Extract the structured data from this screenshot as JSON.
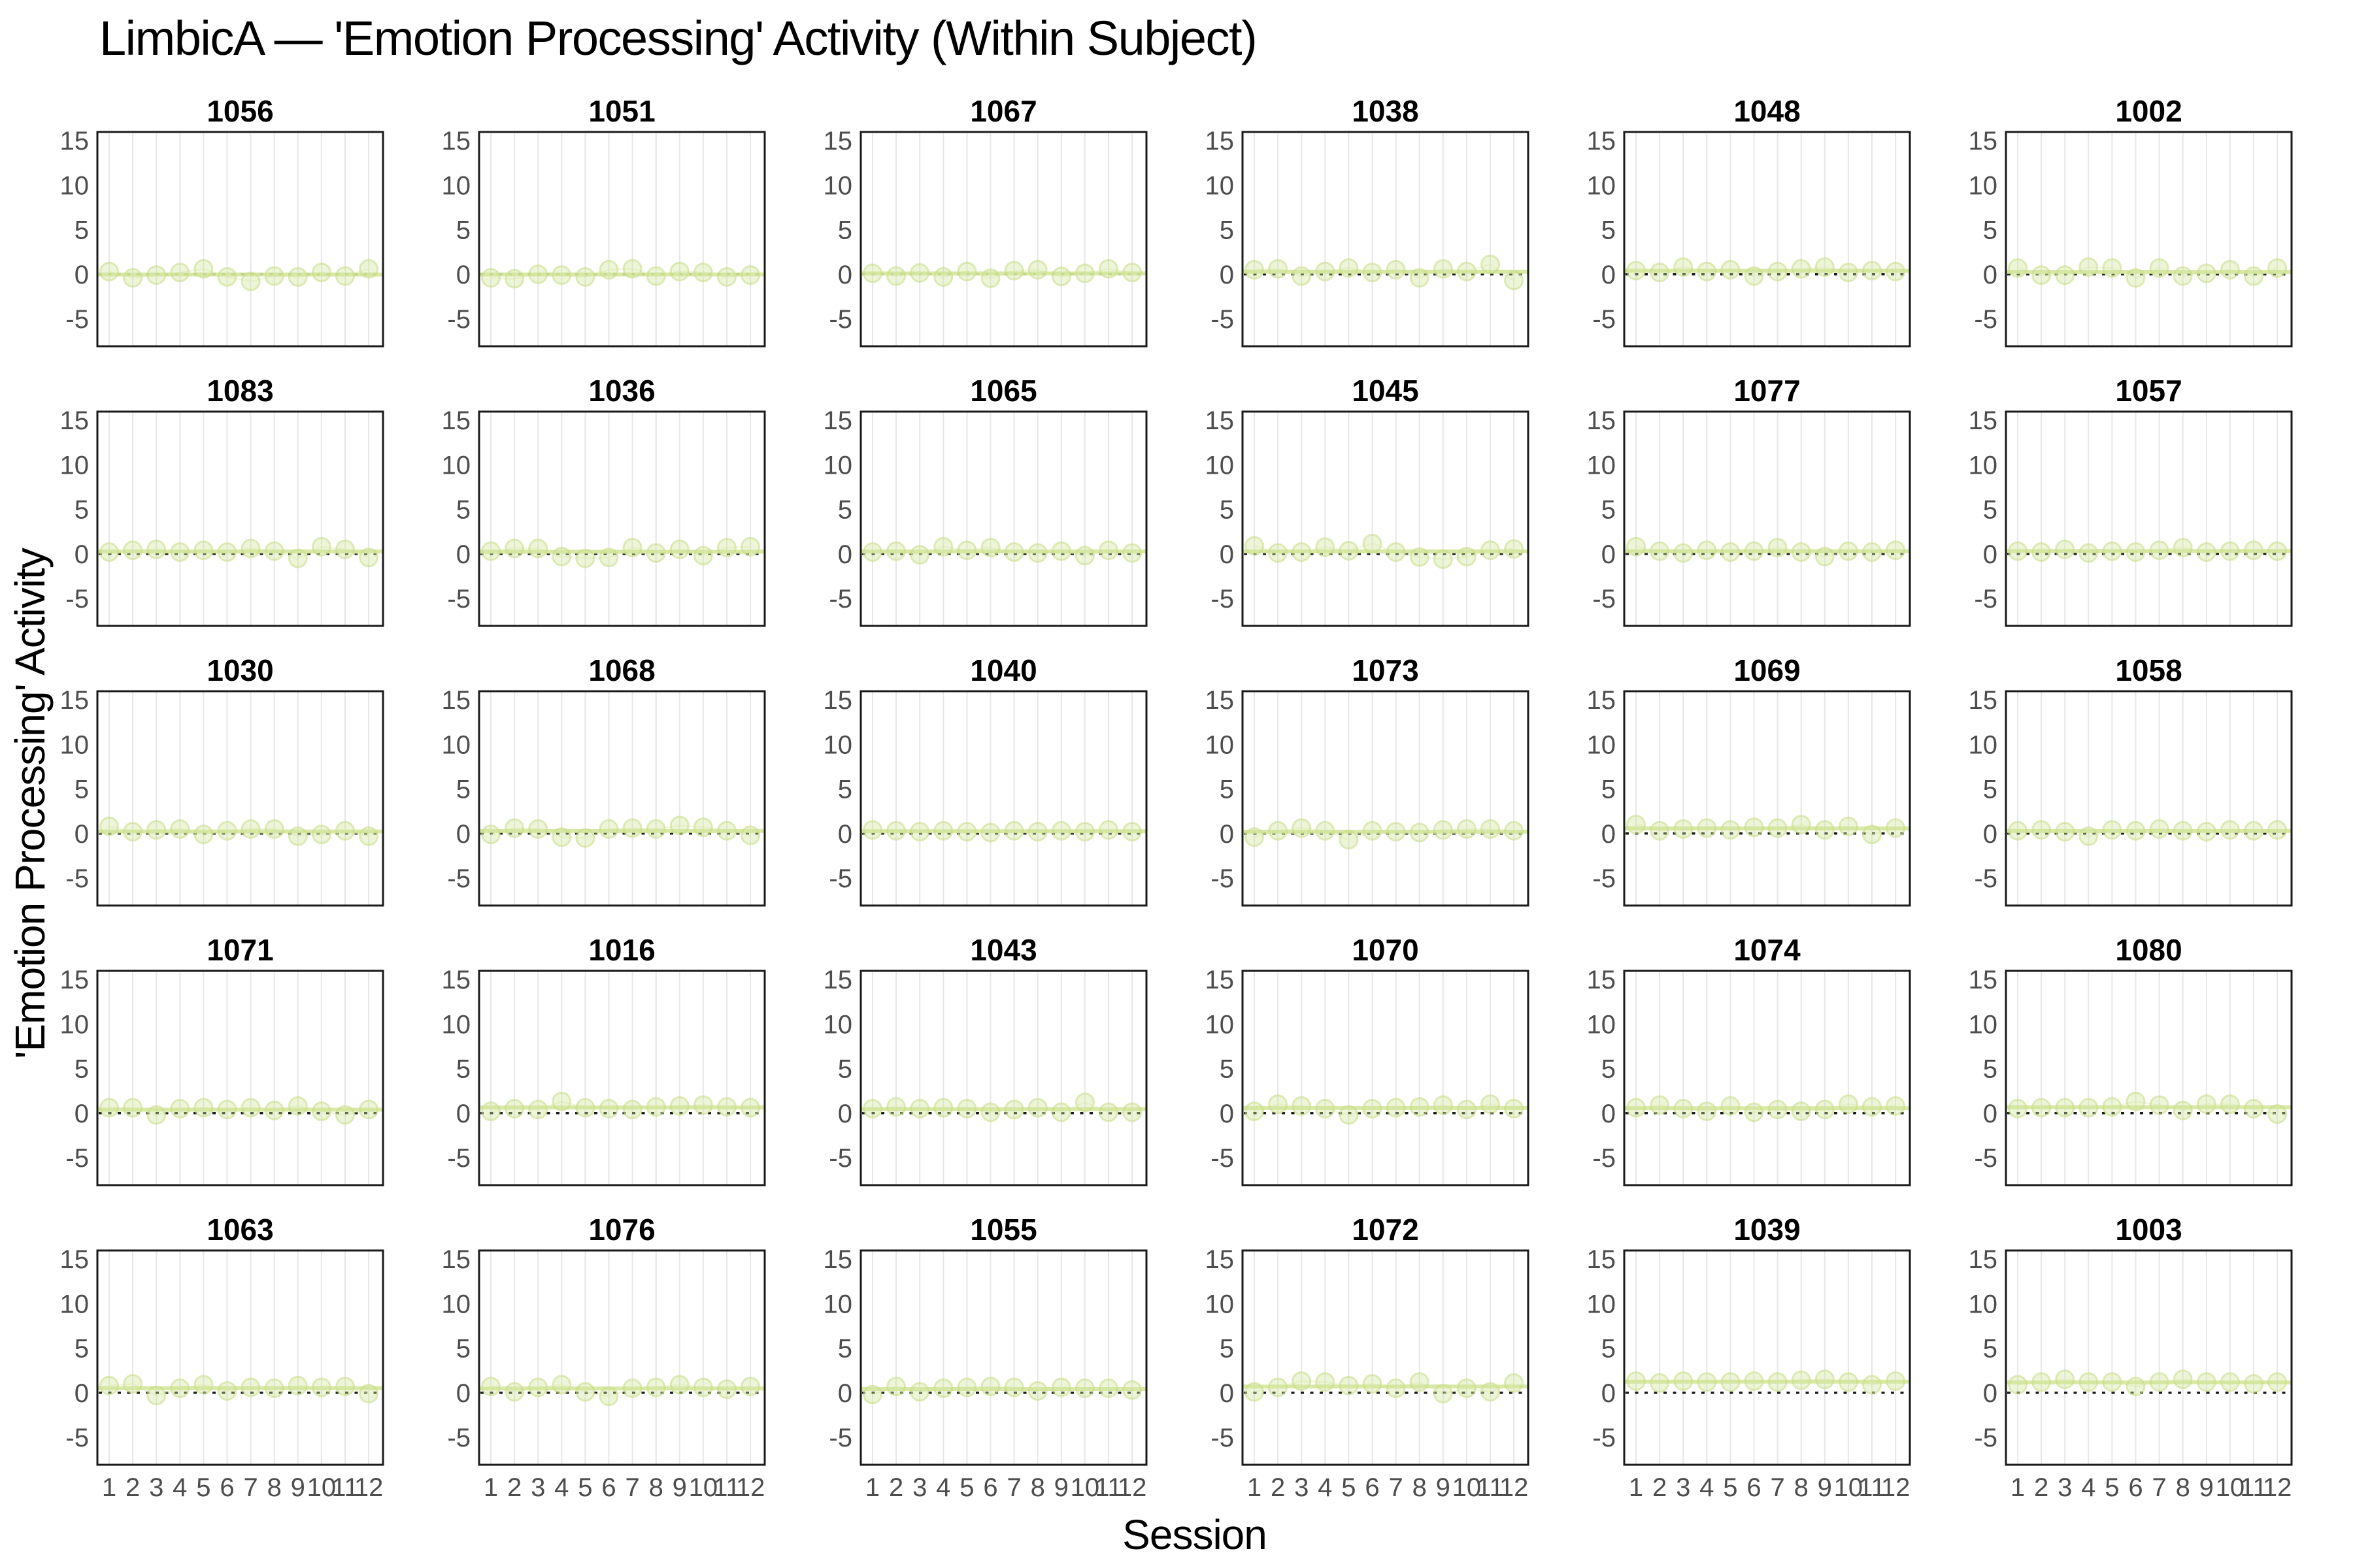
{
  "title": "LimbicA — 'Emotion Processing' Activity (Within Subject)",
  "x_axis_label": "Session",
  "y_axis_label": "'Emotion Processing' Activity",
  "colors": {
    "background": "#ffffff",
    "point_fill": "#cfe59a",
    "point_stroke": "#c6dd85",
    "trend_line": "#d4e79c",
    "connector_line": "#d9ebae",
    "zero_line": "#1a1a1a",
    "panel_border": "#1a1a1a",
    "gridline": "#e7e7e7",
    "tick_label": "#4d4d4d",
    "panel_title": "#000000"
  },
  "chart_data": {
    "type": "scatter",
    "facet_rows": 5,
    "facet_cols": 6,
    "title": "LimbicA — 'Emotion Processing' Activity (Within Subject)",
    "xlabel": "Session",
    "ylabel": "'Emotion Processing' Activity",
    "x": [
      1,
      2,
      3,
      4,
      5,
      6,
      7,
      8,
      9,
      10,
      11,
      12
    ],
    "x_ticks": [
      "1",
      "2",
      "3",
      "4",
      "5",
      "6",
      "7",
      "8",
      "9",
      "10",
      "11",
      "12"
    ],
    "y_ticks": [
      15,
      10,
      5,
      0,
      -5
    ],
    "ylim": [
      -7.9,
      16.1
    ],
    "xlim": [
      0.5,
      12.5
    ],
    "grid": "vertical-gridlines-only",
    "legend": "none",
    "reference_line": {
      "y": 0,
      "style": "dotted-black"
    },
    "smoother": "flat trend line per panel near series mean",
    "panels": [
      {
        "subject": "1056",
        "values": [
          0.3,
          -0.4,
          -0.1,
          0.2,
          0.6,
          -0.3,
          -0.8,
          -0.2,
          -0.3,
          0.2,
          -0.2,
          0.6
        ]
      },
      {
        "subject": "1051",
        "values": [
          -0.4,
          -0.5,
          0.0,
          -0.1,
          -0.3,
          0.5,
          0.6,
          -0.2,
          0.3,
          0.2,
          -0.3,
          -0.1
        ]
      },
      {
        "subject": "1067",
        "values": [
          0.1,
          -0.2,
          0.15,
          -0.3,
          0.3,
          -0.45,
          0.4,
          0.5,
          -0.25,
          0.1,
          0.6,
          0.2
        ]
      },
      {
        "subject": "1038",
        "values": [
          0.5,
          0.6,
          -0.2,
          0.3,
          0.7,
          0.2,
          0.5,
          -0.4,
          0.6,
          0.3,
          1.1,
          -0.7
        ]
      },
      {
        "subject": "1048",
        "values": [
          0.4,
          0.2,
          0.8,
          0.3,
          0.5,
          -0.2,
          0.3,
          0.6,
          0.8,
          0.2,
          0.4,
          0.3
        ]
      },
      {
        "subject": "1002",
        "values": [
          0.7,
          -0.1,
          -0.1,
          0.8,
          0.7,
          -0.4,
          0.7,
          -0.2,
          0.1,
          0.5,
          -0.2,
          0.7
        ]
      },
      {
        "subject": "1083",
        "values": [
          0.2,
          0.4,
          0.5,
          0.2,
          0.4,
          0.2,
          0.6,
          0.3,
          -0.5,
          0.8,
          0.5,
          -0.4
        ]
      },
      {
        "subject": "1036",
        "values": [
          0.3,
          0.6,
          0.6,
          -0.3,
          -0.5,
          -0.4,
          0.7,
          0.1,
          0.5,
          -0.2,
          0.7,
          0.8
        ]
      },
      {
        "subject": "1065",
        "values": [
          0.2,
          0.3,
          -0.1,
          0.8,
          0.4,
          0.7,
          0.2,
          0.1,
          0.3,
          -0.2,
          0.4,
          0.1
        ]
      },
      {
        "subject": "1045",
        "values": [
          0.9,
          0.1,
          0.2,
          0.75,
          0.35,
          1.15,
          0.2,
          -0.35,
          -0.6,
          -0.3,
          0.4,
          0.55
        ]
      },
      {
        "subject": "1077",
        "values": [
          0.8,
          0.3,
          0.1,
          0.4,
          0.2,
          0.3,
          0.7,
          0.2,
          -0.3,
          0.3,
          0.2,
          0.4
        ]
      },
      {
        "subject": "1057",
        "values": [
          0.3,
          0.2,
          0.5,
          0.1,
          0.3,
          0.2,
          0.4,
          0.7,
          0.2,
          0.3,
          0.4,
          0.3
        ]
      },
      {
        "subject": "1030",
        "values": [
          0.8,
          0.2,
          0.4,
          0.5,
          -0.1,
          0.3,
          0.5,
          0.5,
          -0.3,
          -0.1,
          0.3,
          -0.3
        ]
      },
      {
        "subject": "1068",
        "values": [
          -0.1,
          0.6,
          0.5,
          -0.4,
          -0.5,
          0.5,
          0.6,
          0.5,
          0.9,
          0.7,
          0.3,
          -0.2
        ]
      },
      {
        "subject": "1040",
        "values": [
          0.4,
          0.3,
          0.2,
          0.3,
          0.2,
          0.1,
          0.3,
          0.2,
          0.3,
          0.2,
          0.4,
          0.2
        ]
      },
      {
        "subject": "1073",
        "values": [
          -0.4,
          0.3,
          0.6,
          0.3,
          -0.7,
          0.3,
          0.2,
          0.1,
          0.4,
          0.5,
          0.5,
          0.3
        ]
      },
      {
        "subject": "1069",
        "values": [
          1.0,
          0.3,
          0.5,
          0.6,
          0.4,
          0.7,
          0.6,
          1.0,
          0.4,
          0.8,
          -0.1,
          0.6
        ]
      },
      {
        "subject": "1058",
        "values": [
          0.3,
          0.4,
          0.2,
          -0.3,
          0.4,
          0.3,
          0.5,
          0.3,
          0.2,
          0.4,
          0.3,
          0.4
        ]
      },
      {
        "subject": "1071",
        "values": [
          0.6,
          0.6,
          -0.2,
          0.5,
          0.6,
          0.4,
          0.6,
          0.3,
          0.8,
          0.2,
          -0.2,
          0.4
        ]
      },
      {
        "subject": "1016",
        "values": [
          0.2,
          0.5,
          0.4,
          1.3,
          0.6,
          0.5,
          0.4,
          0.7,
          0.8,
          0.9,
          0.7,
          0.6
        ]
      },
      {
        "subject": "1043",
        "values": [
          0.5,
          0.7,
          0.5,
          0.6,
          0.5,
          0.1,
          0.4,
          0.6,
          0.1,
          1.2,
          0.1,
          0.1
        ]
      },
      {
        "subject": "1070",
        "values": [
          0.2,
          1.0,
          0.8,
          0.5,
          -0.2,
          0.5,
          0.6,
          0.7,
          0.9,
          0.4,
          1.0,
          0.5
        ]
      },
      {
        "subject": "1074",
        "values": [
          0.6,
          0.9,
          0.5,
          0.2,
          0.8,
          0.1,
          0.4,
          0.2,
          0.4,
          1.0,
          0.7,
          0.8
        ]
      },
      {
        "subject": "1080",
        "values": [
          0.5,
          0.6,
          0.6,
          0.6,
          0.7,
          1.3,
          0.9,
          0.3,
          1.0,
          1.0,
          0.5,
          -0.1
        ]
      },
      {
        "subject": "1063",
        "values": [
          0.8,
          1.0,
          -0.3,
          0.5,
          0.9,
          0.2,
          0.6,
          0.5,
          0.8,
          0.6,
          0.7,
          -0.1
        ]
      },
      {
        "subject": "1076",
        "values": [
          0.7,
          0.1,
          0.6,
          0.9,
          0.1,
          -0.4,
          0.5,
          0.6,
          0.9,
          0.6,
          0.4,
          0.7
        ]
      },
      {
        "subject": "1055",
        "values": [
          -0.2,
          0.7,
          0.1,
          0.5,
          0.6,
          0.7,
          0.6,
          0.2,
          0.6,
          0.5,
          0.5,
          0.3
        ]
      },
      {
        "subject": "1072",
        "values": [
          0.1,
          0.6,
          1.3,
          1.2,
          0.8,
          1.0,
          0.5,
          1.2,
          -0.1,
          0.5,
          0.1,
          1.1
        ]
      },
      {
        "subject": "1039",
        "values": [
          1.3,
          1.1,
          1.3,
          1.2,
          1.2,
          1.3,
          1.2,
          1.4,
          1.5,
          1.2,
          0.9,
          1.3
        ]
      },
      {
        "subject": "1003",
        "values": [
          0.9,
          1.2,
          1.5,
          1.2,
          1.2,
          0.7,
          1.2,
          1.5,
          1.2,
          1.2,
          1.0,
          1.2
        ]
      }
    ]
  }
}
